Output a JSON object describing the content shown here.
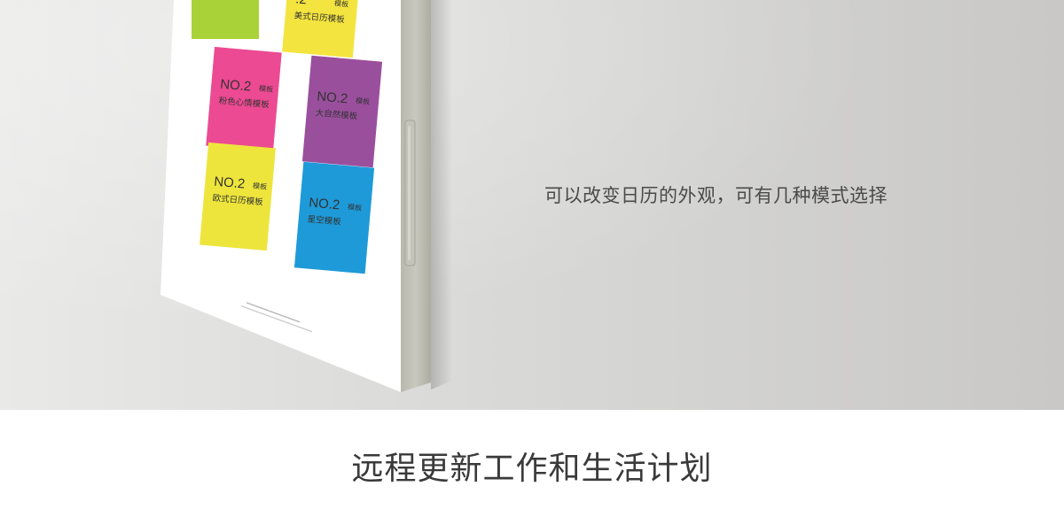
{
  "tagline": "可以改变日历的外观，可有几种模式选择",
  "heading": "远程更新工作和生活计划",
  "device": {
    "templates": [
      {
        "title": "",
        "tag": "",
        "subtitle": "",
        "color": "#a9d238"
      },
      {
        "title": ".2",
        "tag": "模板",
        "subtitle": "美式日历模板",
        "color": "#f3e43f"
      },
      {
        "title": "NO.2",
        "tag": "模板",
        "subtitle": "粉色心情模板",
        "color": "#ec4a93"
      },
      {
        "title": "NO.2",
        "tag": "模板",
        "subtitle": "大自然模板",
        "color": "#9a4f9d"
      },
      {
        "title": "NO.2",
        "tag": "模板",
        "subtitle": "欧式日历模板",
        "color": "#eee53c"
      },
      {
        "title": "NO.2",
        "tag": "模板",
        "subtitle": "星空模板",
        "color": "#1e9ad9"
      }
    ]
  }
}
